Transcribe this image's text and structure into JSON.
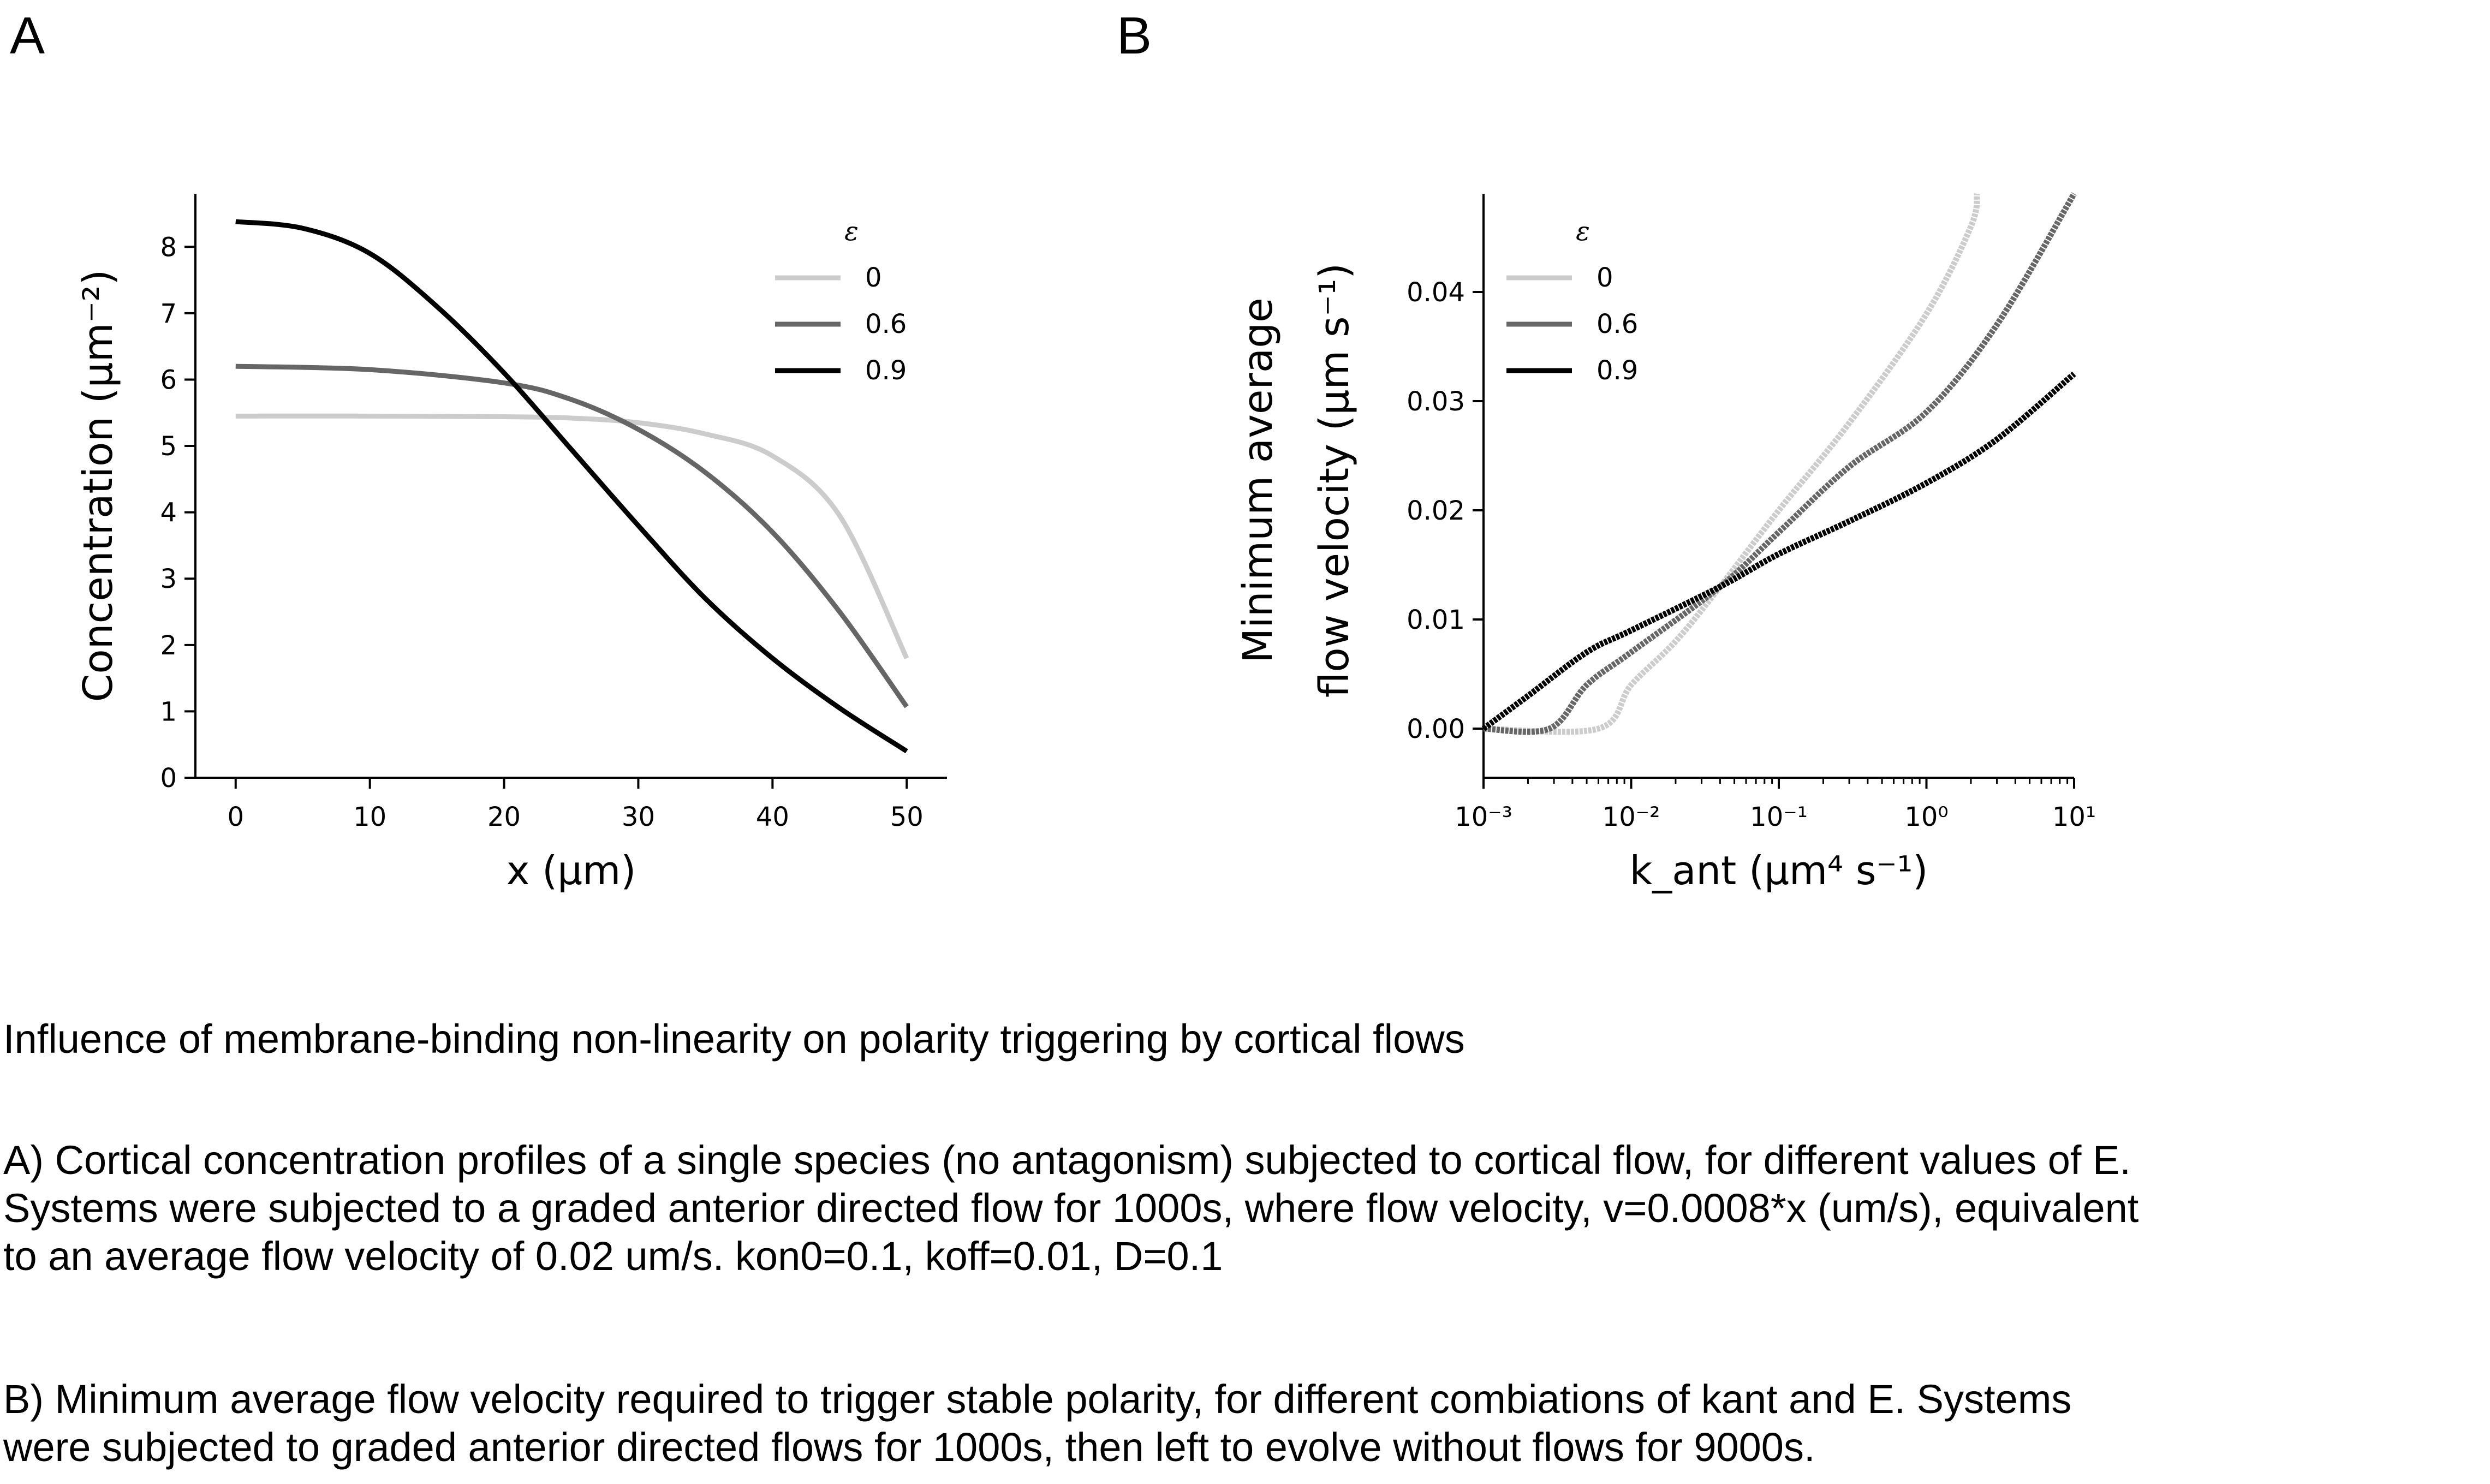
{
  "panels": {
    "a_letter": "A",
    "b_letter": "B"
  },
  "chart_data": [
    {
      "type": "line",
      "id": "A",
      "xlabel": "x (μm)",
      "ylabel": "Concentration (μm⁻²)",
      "xlim": [
        -3,
        53
      ],
      "ylim": [
        0,
        8.8
      ],
      "xticks": [
        0,
        10,
        20,
        30,
        40,
        50
      ],
      "yticks": [
        0,
        1,
        2,
        3,
        4,
        5,
        6,
        7,
        8
      ],
      "legend": {
        "title": "ε",
        "placement": "top-right"
      },
      "grid": false,
      "series": [
        {
          "name": "0",
          "color": "#cccccc",
          "x": [
            0,
            10,
            20,
            25,
            30,
            35,
            40,
            45,
            50
          ],
          "y": [
            5.45,
            5.45,
            5.44,
            5.42,
            5.35,
            5.18,
            4.85,
            3.95,
            1.8
          ]
        },
        {
          "name": "0.6",
          "color": "#666666",
          "x": [
            0,
            10,
            20,
            25,
            30,
            35,
            40,
            45,
            50
          ],
          "y": [
            6.2,
            6.15,
            5.95,
            5.7,
            5.25,
            4.6,
            3.7,
            2.5,
            1.07
          ]
        },
        {
          "name": "0.9",
          "color": "#000000",
          "x": [
            0,
            5,
            10,
            15,
            20,
            25,
            30,
            35,
            40,
            45,
            50
          ],
          "y": [
            8.38,
            8.28,
            7.9,
            7.1,
            6.1,
            4.95,
            3.8,
            2.7,
            1.8,
            1.05,
            0.4
          ]
        }
      ]
    },
    {
      "type": "line",
      "id": "B",
      "xlabel": "k_ant (μm⁴ s⁻¹)",
      "ylabel_line1": "Minimum average",
      "ylabel_line2": "flow velocity (μm s⁻¹)",
      "xscale": "log",
      "xlim": [
        0.001,
        10
      ],
      "ylim": [
        -0.0045,
        0.049
      ],
      "xtick_labels": [
        "10⁻³",
        "10⁻²",
        "10⁻¹",
        "10⁰",
        "10¹"
      ],
      "xticks": [
        0.001,
        0.01,
        0.1,
        1,
        10
      ],
      "yticks": [
        0.0,
        0.01,
        0.02,
        0.03,
        0.04
      ],
      "ytick_labels": [
        "0.00",
        "0.01",
        "0.02",
        "0.03",
        "0.04"
      ],
      "legend": {
        "title": "ε",
        "placement": "top-left"
      },
      "grid": false,
      "series": [
        {
          "name": "0",
          "color": "#cccccc",
          "x": [
            0.001,
            0.006,
            0.01,
            0.02,
            0.04,
            0.1,
            0.3,
            1,
            2,
            2.2
          ],
          "y": [
            0.0,
            0.0,
            0.004,
            0.008,
            0.013,
            0.02,
            0.028,
            0.038,
            0.046,
            0.049
          ]
        },
        {
          "name": "0.6",
          "color": "#666666",
          "x": [
            0.001,
            0.0028,
            0.005,
            0.01,
            0.04,
            0.1,
            0.3,
            1,
            3,
            10
          ],
          "y": [
            0.0,
            0.0,
            0.004,
            0.007,
            0.013,
            0.018,
            0.024,
            0.029,
            0.037,
            0.049
          ]
        },
        {
          "name": "0.9",
          "color": "#000000",
          "x": [
            0.001,
            0.002,
            0.005,
            0.01,
            0.04,
            0.1,
            0.3,
            1,
            3,
            10
          ],
          "y": [
            0.0,
            0.003,
            0.007,
            0.009,
            0.013,
            0.016,
            0.019,
            0.0225,
            0.0265,
            0.0325
          ]
        }
      ]
    }
  ],
  "caption": {
    "title": "Influence of membrane-binding non-linearity on polarity triggering by cortical flows",
    "a_lines": [
      "A) Cortical concentration profiles of a single species (no antagonism) subjected to cortical flow, for different values of E.",
      "Systems were subjected to a graded anterior directed flow for 1000s, where flow velocity, v=0.0008*x (um/s), equivalent",
      "to an average flow velocity of 0.02 um/s. kon0=0.1, koff=0.01, D=0.1"
    ],
    "b_lines": [
      "B) Minimum average flow velocity required to trigger stable polarity, for different combiations of kant and E. Systems",
      "were subjected to graded anterior directed flows for 1000s, then left to evolve without flows for 9000s."
    ]
  }
}
